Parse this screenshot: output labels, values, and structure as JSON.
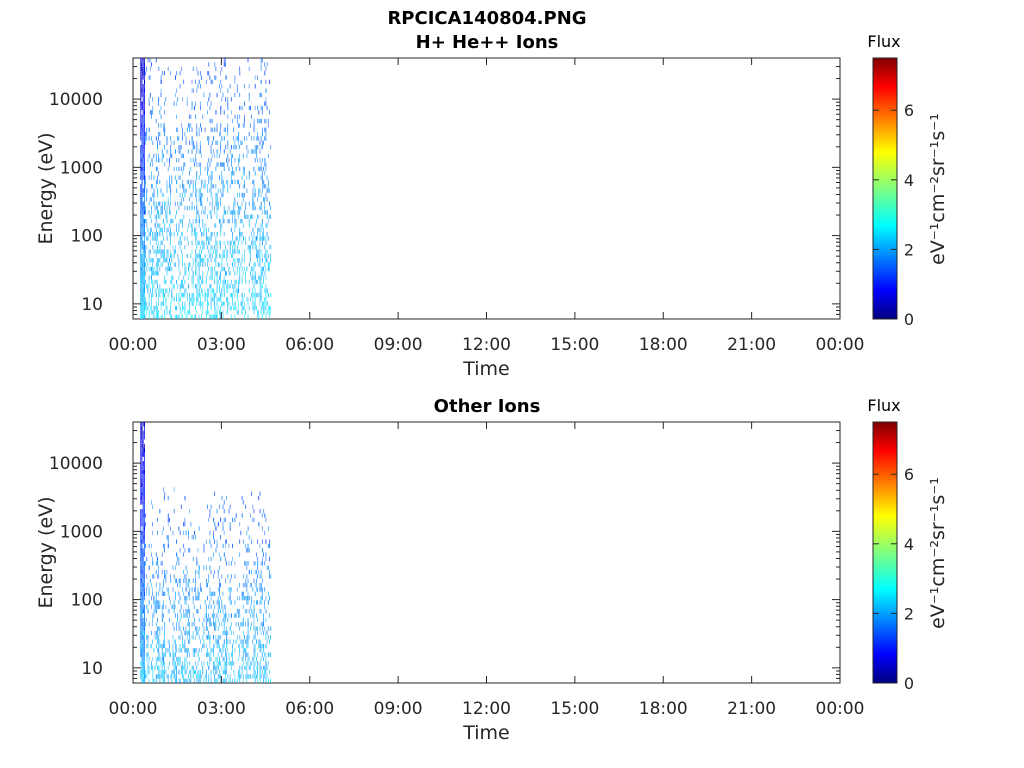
{
  "figure": {
    "title_line1": "RPCICA140804.PNG"
  },
  "colorbar": {
    "label": "Flux",
    "units": "eV⁻¹cm⁻²sr⁻¹s⁻¹",
    "ticks": [
      "0",
      "2",
      "4",
      "6"
    ],
    "range": [
      0,
      7.5
    ],
    "colormap": "jet"
  },
  "chart_data": [
    {
      "type": "heatmap",
      "title": "H+ He++ Ions",
      "xlabel": "Time",
      "ylabel": "Energy (eV)",
      "x_ticks": [
        "00:00",
        "03:00",
        "06:00",
        "09:00",
        "12:00",
        "15:00",
        "18:00",
        "21:00",
        "00:00"
      ],
      "x_range_hours": [
        0,
        24
      ],
      "y_ticks": [
        "10",
        "100",
        "1000",
        "10000"
      ],
      "y_scale": "log",
      "y_range": [
        6,
        40000
      ],
      "data_coverage_hours": [
        0.25,
        4.7
      ],
      "peak_flux_hours": [
        0.3,
        0.4
      ],
      "typical_flux_low_energy": 2.5,
      "typical_flux_high_energy": 1.5
    },
    {
      "type": "heatmap",
      "title": "Other Ions",
      "xlabel": "Time",
      "ylabel": "Energy (eV)",
      "x_ticks": [
        "00:00",
        "03:00",
        "06:00",
        "09:00",
        "12:00",
        "15:00",
        "18:00",
        "21:00",
        "00:00"
      ],
      "x_range_hours": [
        0,
        24
      ],
      "y_ticks": [
        "10",
        "100",
        "1000",
        "10000"
      ],
      "y_scale": "log",
      "y_range": [
        6,
        40000
      ],
      "data_coverage_hours": [
        0.25,
        4.7
      ],
      "peak_flux_hours": [
        0.3,
        0.4
      ],
      "typical_flux_low_energy": 2.3,
      "typical_flux_high_energy": 1.2
    }
  ]
}
